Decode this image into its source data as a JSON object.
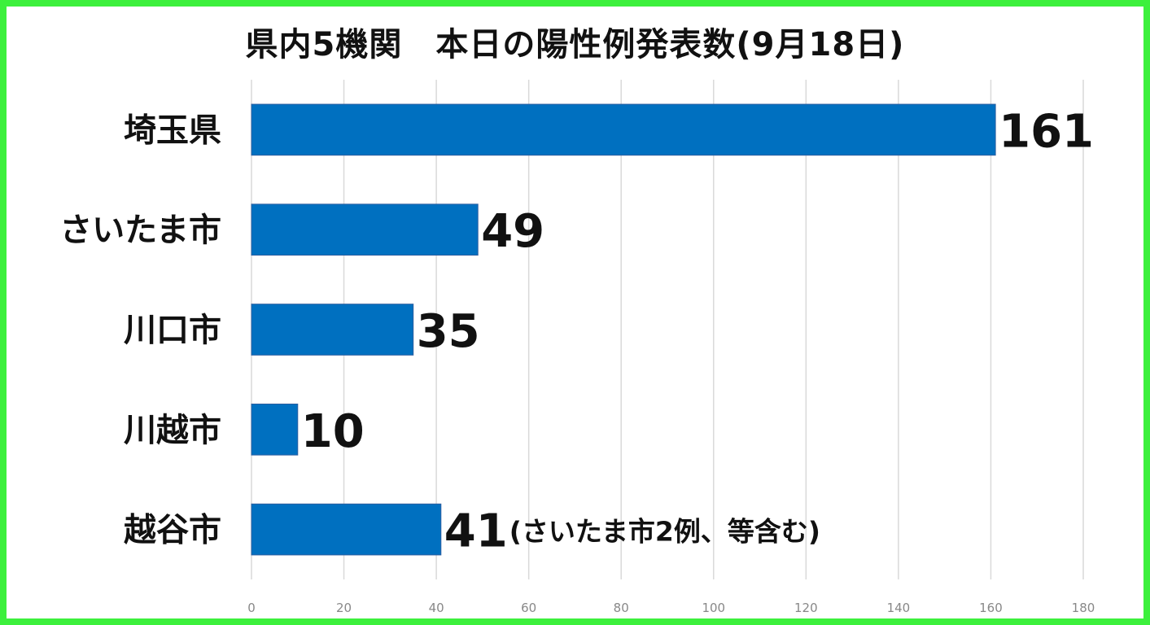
{
  "colors": {
    "frame": "#3cf03c",
    "bar": "#0070c0",
    "gridline": "#d9d9d9",
    "text": "#111111",
    "tick_text": "#888888"
  },
  "chart_data": {
    "type": "bar",
    "orientation": "horizontal",
    "title": "県内5機関　本日の陽性例発表数(9月18日)",
    "categories": [
      "埼玉県",
      "さいたま市",
      "川口市",
      "川越市",
      "越谷市"
    ],
    "values": [
      161,
      49,
      35,
      10,
      41
    ],
    "data_labels": [
      "161",
      "49",
      "35",
      "10",
      "41"
    ],
    "annotations": [
      {
        "category": "越谷市",
        "text": "(さいたま市2例、等含む)"
      }
    ],
    "xlim": [
      0,
      180
    ],
    "x_ticks": [
      0,
      20,
      40,
      60,
      80,
      100,
      120,
      140,
      160,
      180
    ],
    "grid": true,
    "legend": "none"
  }
}
